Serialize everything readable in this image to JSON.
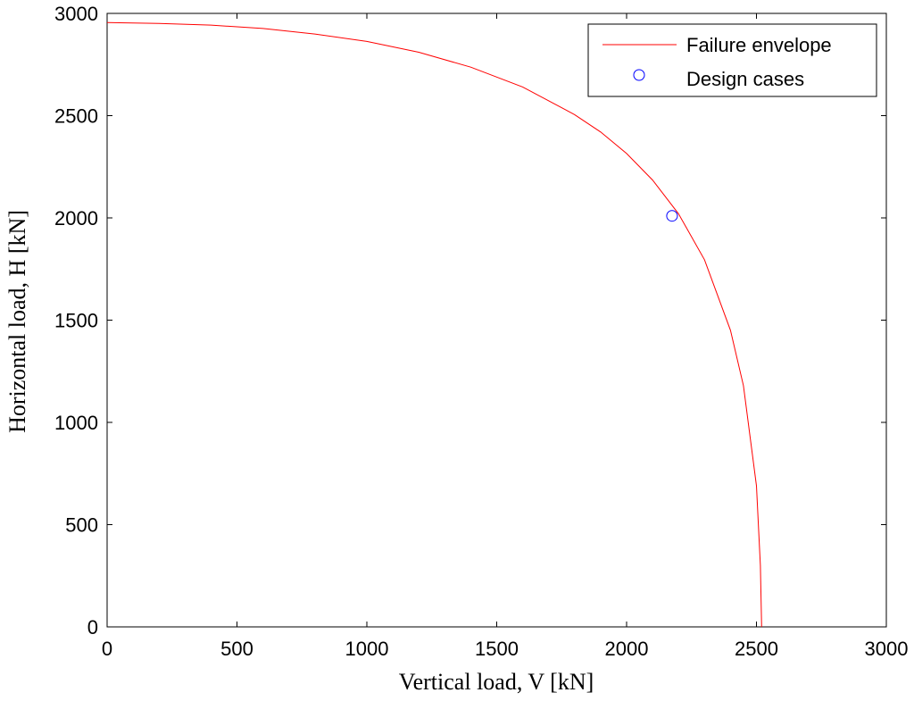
{
  "chart_data": {
    "type": "line",
    "xlabel": "Vertical load, V [kN]",
    "ylabel": "Horizontal load, H [kN]",
    "xlim": [
      0,
      3000
    ],
    "ylim": [
      0,
      3000
    ],
    "xticks": [
      0,
      500,
      1000,
      1500,
      2000,
      2500,
      3000
    ],
    "yticks": [
      0,
      500,
      1000,
      1500,
      2000,
      2500,
      3000
    ],
    "grid": false,
    "legend_position": "top-right",
    "series": [
      {
        "name": "Failure envelope",
        "style": "line",
        "color": "#ff0000",
        "x": [
          0,
          200,
          400,
          600,
          800,
          1000,
          1200,
          1400,
          1600,
          1800,
          1900,
          2000,
          2100,
          2200,
          2300,
          2400,
          2450,
          2500,
          2515,
          2520
        ],
        "y": [
          2955,
          2951,
          2943,
          2926,
          2899,
          2863,
          2810,
          2737,
          2640,
          2505,
          2420,
          2315,
          2185,
          2020,
          1795,
          1450,
          1180,
          690,
          300,
          0
        ]
      },
      {
        "name": "Design cases",
        "style": "marker",
        "marker": "circle",
        "color": "#0000ff",
        "x": [
          2175
        ],
        "y": [
          2010
        ]
      }
    ]
  }
}
